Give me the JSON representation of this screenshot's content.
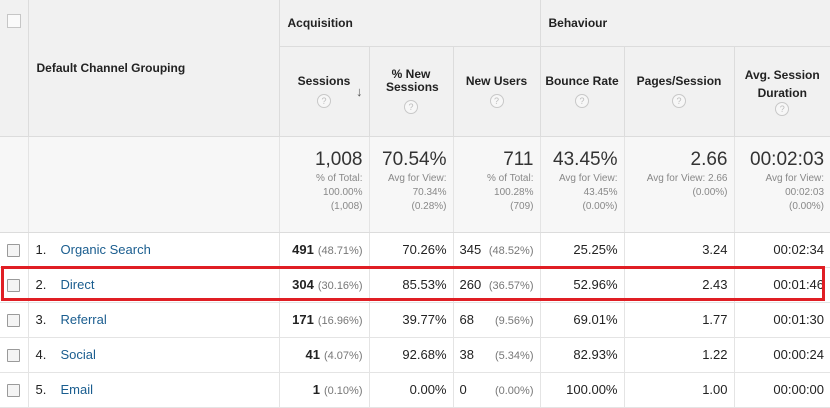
{
  "header": {
    "dimension": "Default Channel Grouping",
    "groups": {
      "acquisition": "Acquisition",
      "behaviour": "Behaviour"
    },
    "columns": {
      "sessions": "Sessions",
      "pct_new_sessions": "% New Sessions",
      "new_users": "New Users",
      "bounce_rate": "Bounce Rate",
      "pages_session": "Pages/Session",
      "avg_duration": "Avg. Session Duration"
    },
    "help_glyph": "?",
    "sort_glyph": "↓"
  },
  "totals": {
    "sessions": {
      "value": "1,008",
      "l1": "% of Total:",
      "l2": "100.00%",
      "l3": "(1,008)"
    },
    "pct_new_sessions": {
      "value": "70.54%",
      "l1": "Avg for View:",
      "l2": "70.34%",
      "l3": "(0.28%)"
    },
    "new_users": {
      "value": "711",
      "l1": "% of Total:",
      "l2": "100.28%",
      "l3": "(709)"
    },
    "bounce_rate": {
      "value": "43.45%",
      "l1": "Avg for View:",
      "l2": "43.45%",
      "l3": "(0.00%)"
    },
    "pages_session": {
      "value": "2.66",
      "l1": "Avg for View: 2.66",
      "l2": "(0.00%)"
    },
    "avg_duration": {
      "value": "00:02:03",
      "l1": "Avg for View:",
      "l2": "00:02:03",
      "l3": "(0.00%)"
    }
  },
  "rows": [
    {
      "index": "1.",
      "channel": "Organic Search",
      "sessions": "491",
      "sessions_pct": "(48.71%)",
      "pct_new": "70.26%",
      "new_users": "345",
      "new_users_pct": "(48.52%)",
      "bounce": "25.25%",
      "pages": "3.24",
      "duration": "00:02:34"
    },
    {
      "index": "2.",
      "channel": "Direct",
      "sessions": "304",
      "sessions_pct": "(30.16%)",
      "pct_new": "85.53%",
      "new_users": "260",
      "new_users_pct": "(36.57%)",
      "bounce": "52.96%",
      "pages": "2.43",
      "duration": "00:01:46"
    },
    {
      "index": "3.",
      "channel": "Referral",
      "sessions": "171",
      "sessions_pct": "(16.96%)",
      "pct_new": "39.77%",
      "new_users": "68",
      "new_users_pct": "(9.56%)",
      "bounce": "69.01%",
      "pages": "1.77",
      "duration": "00:01:30"
    },
    {
      "index": "4.",
      "channel": "Social",
      "sessions": "41",
      "sessions_pct": "(4.07%)",
      "pct_new": "92.68%",
      "new_users": "38",
      "new_users_pct": "(5.34%)",
      "bounce": "82.93%",
      "pages": "1.22",
      "duration": "00:00:24"
    },
    {
      "index": "5.",
      "channel": "Email",
      "sessions": "1",
      "sessions_pct": "(0.10%)",
      "pct_new": "0.00%",
      "new_users": "0",
      "new_users_pct": "(0.00%)",
      "bounce": "100.00%",
      "pages": "1.00",
      "duration": "00:00:00"
    }
  ],
  "colors": {
    "highlight": "#e01e24",
    "link": "#1a5d8f",
    "header_bg": "#f1f1f1"
  }
}
